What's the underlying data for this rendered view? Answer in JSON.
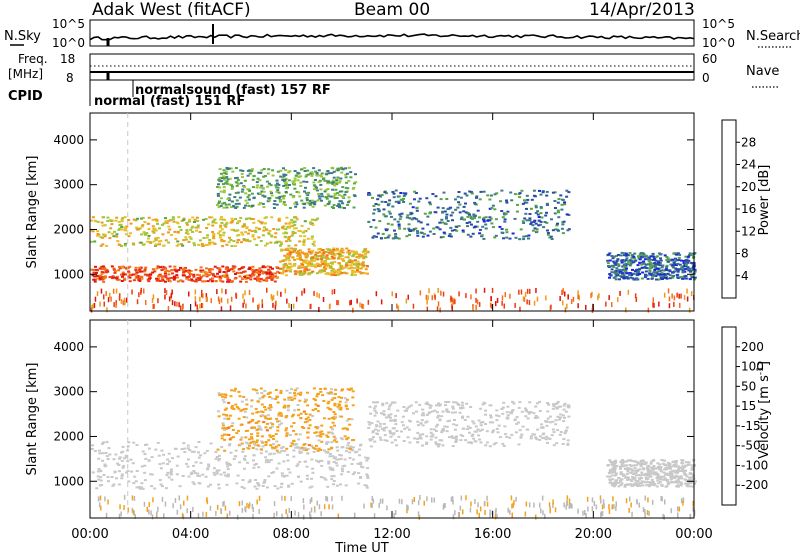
{
  "header": {
    "title": "Adak West (fitACF)",
    "beam": "Beam 00",
    "date": "14/Apr/2013"
  },
  "status_panels": {
    "nsky_label": "N.Sky",
    "nsky_ticks": [
      "10^5",
      "10^0"
    ],
    "nsearch_label": "N.Search",
    "nsearch_ticks": [
      "10^5",
      "10^0"
    ],
    "freq_label_1": "Freq.",
    "freq_label_2": "[MHz]",
    "freq_ticks": [
      "18",
      "8"
    ],
    "nave_label": "Nave",
    "nave_ticks": [
      "60",
      "0"
    ],
    "cpid_label": "CPID",
    "cpid_entries": [
      "normalsound (fast) 157 RF",
      "normal (fast) 151 RF"
    ]
  },
  "chart_data": [
    {
      "type": "heatmap",
      "panel": "power",
      "ylabel": "Slant Range [km]",
      "ylim": [
        180,
        4600
      ],
      "yticks": [
        "1000",
        "2000",
        "3000",
        "4000"
      ],
      "colorbar_label": "Power [dB]",
      "colorbar_ticks": [
        "4",
        "8",
        "12",
        "16",
        "20",
        "24",
        "28"
      ],
      "colorscale": [
        "#1a23e8",
        "#2a4ba8",
        "#3a7a8a",
        "#56a448",
        "#9ac83a",
        "#e8c02c",
        "#f09a1c",
        "#f4701c",
        "#ec3a18",
        "#e0140e"
      ],
      "bands": [
        {
          "t_start": 0.0,
          "t_end": 7.5,
          "r_lo": 850,
          "r_hi": 1200,
          "value_db": 26
        },
        {
          "t_start": 7.5,
          "t_end": 11.0,
          "r_lo": 1000,
          "r_hi": 1600,
          "value_db": 18
        },
        {
          "t_start": 0.0,
          "t_end": 9.0,
          "r_lo": 1650,
          "r_hi": 2300,
          "value_db": 16
        },
        {
          "t_start": 11.0,
          "t_end": 19.0,
          "r_lo": 1800,
          "r_hi": 2900,
          "value_db": 6
        },
        {
          "t_start": 20.5,
          "t_end": 24.0,
          "r_lo": 900,
          "r_hi": 1500,
          "value_db": 5
        },
        {
          "t_start": 5.0,
          "t_end": 10.5,
          "r_lo": 2500,
          "r_hi": 3400,
          "value_db": 10
        }
      ]
    },
    {
      "type": "heatmap",
      "panel": "velocity",
      "ylabel": "Slant Range [km]",
      "ylim": [
        180,
        4600
      ],
      "yticks": [
        "1000",
        "2000",
        "3000",
        "4000"
      ],
      "colorbar_label": "Velocity [m s^-1]",
      "colorbar_ticks": [
        "200",
        "100",
        "50",
        "15",
        "-15",
        "-50",
        "-100",
        "-200"
      ],
      "colorscale": [
        "#1818c8",
        "#3a58a8",
        "#3e8c6a",
        "#8cd048",
        "#c8c8c8",
        "#c8c8c8",
        "#f4a21c",
        "#f07414",
        "#e43a12",
        "#e00c0c"
      ],
      "bands": [
        {
          "t_start": 0.0,
          "t_end": 11.0,
          "r_lo": 850,
          "r_hi": 1900,
          "value_ms": 0
        },
        {
          "t_start": 5.0,
          "t_end": 10.5,
          "r_lo": 1700,
          "r_hi": 3100,
          "value_ms": -60
        },
        {
          "t_start": 11.0,
          "t_end": 19.0,
          "r_lo": 1800,
          "r_hi": 2800,
          "value_ms": 0
        },
        {
          "t_start": 20.5,
          "t_end": 24.0,
          "r_lo": 900,
          "r_hi": 1500,
          "value_ms": 0
        }
      ]
    }
  ],
  "x_axis": {
    "label": "Time UT",
    "ticks": [
      "00:00",
      "04:00",
      "08:00",
      "12:00",
      "16:00",
      "20:00",
      "00:00"
    ],
    "range_hours": [
      0,
      24
    ]
  }
}
